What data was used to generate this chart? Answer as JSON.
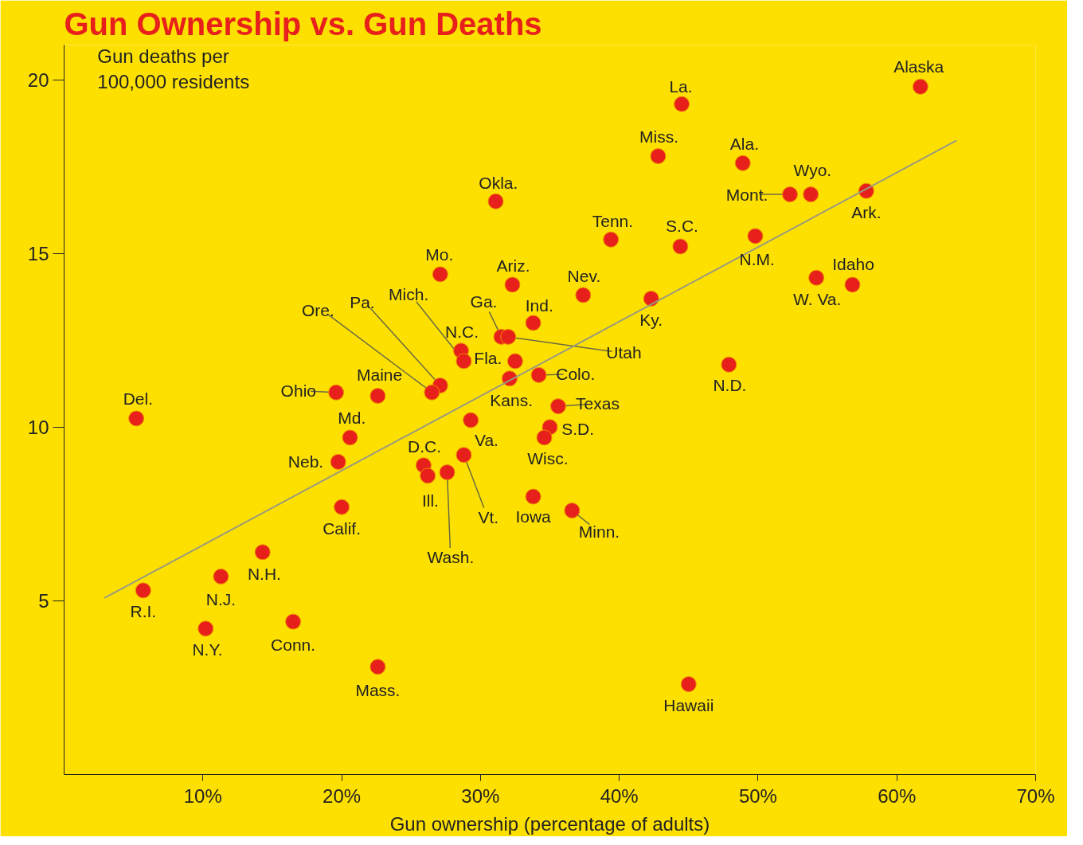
{
  "chart_data": {
    "type": "scatter",
    "title": "Gun Ownership vs. Gun Deaths",
    "xlabel": "Gun ownership (percentage of adults)",
    "ylabel": "Gun deaths per 100,000 residents",
    "xlim": [
      0,
      70
    ],
    "ylim": [
      0,
      21
    ],
    "xticks": [
      {
        "value": 10,
        "label": "10%"
      },
      {
        "value": 20,
        "label": "20%"
      },
      {
        "value": 30,
        "label": "30%"
      },
      {
        "value": 40,
        "label": "40%"
      },
      {
        "value": 50,
        "label": "50%"
      },
      {
        "value": 60,
        "label": "60%"
      },
      {
        "value": 70,
        "label": "70%"
      }
    ],
    "yticks": [
      5,
      10,
      15,
      20
    ],
    "grid": false,
    "marker": "circle",
    "series": [
      {
        "color": "#e8201c",
        "x": [
          61.7,
          44.5,
          42.8,
          48.9,
          53.8,
          52.3,
          57.8,
          31.1,
          39.4,
          44.4,
          49.8,
          27.1,
          32.3,
          37.4,
          42.3,
          56.8,
          54.2,
          33.8,
          31.5,
          32.0,
          28.6,
          28.8,
          32.5,
          32.1,
          34.2,
          47.9,
          27.1,
          26.5,
          22.6,
          19.6,
          35.6,
          5.2,
          29.3,
          35.0,
          20.6,
          34.6,
          28.8,
          19.75,
          25.9,
          26.2,
          27.6,
          33.8,
          36.6,
          20.0,
          14.3,
          11.3,
          5.7,
          10.2,
          16.5,
          22.6,
          45.0
        ],
        "values": [
          19.8,
          19.3,
          17.8,
          17.6,
          16.7,
          16.7,
          16.8,
          16.5,
          15.4,
          15.2,
          15.5,
          14.4,
          14.1,
          13.8,
          13.7,
          14.1,
          14.3,
          13.0,
          12.6,
          12.6,
          12.2,
          11.9,
          11.9,
          11.4,
          11.5,
          11.8,
          11.2,
          11.0,
          10.9,
          11.0,
          10.6,
          10.25,
          10.2,
          10.0,
          9.7,
          9.7,
          9.2,
          9.0,
          8.9,
          8.6,
          8.7,
          8.0,
          7.6,
          7.7,
          6.4,
          5.7,
          5.3,
          4.2,
          4.4,
          3.1,
          2.6
        ]
      },
      {
        "type": "line",
        "marker": "none",
        "color": "#9a9a80",
        "x": [
          2.9,
          64.3
        ],
        "values": [
          5.08,
          18.25
        ]
      }
    ],
    "annotations": [
      {
        "text": "Alaska",
        "x": 61.7,
        "y": 19.8
      },
      {
        "text": "La.",
        "x": 44.5,
        "y": 19.3
      },
      {
        "text": "Miss.",
        "x": 42.8,
        "y": 17.8
      },
      {
        "text": "Ala.",
        "x": 48.9,
        "y": 17.6
      },
      {
        "text": "Wyo.",
        "x": 53.8,
        "y": 16.7
      },
      {
        "text": "Mont.",
        "x": 52.3,
        "y": 16.7
      },
      {
        "text": "Ark.",
        "x": 57.8,
        "y": 16.8
      },
      {
        "text": "Okla.",
        "x": 31.1,
        "y": 16.5
      },
      {
        "text": "Tenn.",
        "x": 39.4,
        "y": 15.4
      },
      {
        "text": "S.C.",
        "x": 44.4,
        "y": 15.2
      },
      {
        "text": "N.M.",
        "x": 49.8,
        "y": 15.5
      },
      {
        "text": "Mo.",
        "x": 27.1,
        "y": 14.4
      },
      {
        "text": "Ariz.",
        "x": 32.3,
        "y": 14.1
      },
      {
        "text": "Nev.",
        "x": 37.4,
        "y": 13.8
      },
      {
        "text": "Ky.",
        "x": 42.3,
        "y": 13.7
      },
      {
        "text": "Idaho",
        "x": 56.8,
        "y": 14.1
      },
      {
        "text": "W. Va.",
        "x": 54.2,
        "y": 14.3
      },
      {
        "text": "Ind.",
        "x": 33.8,
        "y": 13.0
      },
      {
        "text": "Ga.",
        "x": 31.5,
        "y": 12.6
      },
      {
        "text": "Utah",
        "x": 32.0,
        "y": 12.6
      },
      {
        "text": "N.C.",
        "x": 28.6,
        "y": 12.2
      },
      {
        "text": "Mich.",
        "x": 28.8,
        "y": 11.9
      },
      {
        "text": "Fla.",
        "x": 32.5,
        "y": 11.9
      },
      {
        "text": "Kans.",
        "x": 32.1,
        "y": 11.4
      },
      {
        "text": "Colo.",
        "x": 34.2,
        "y": 11.5
      },
      {
        "text": "N.D.",
        "x": 47.9,
        "y": 11.8
      },
      {
        "text": "Pa.",
        "x": 27.1,
        "y": 11.2
      },
      {
        "text": "Ore.",
        "x": 26.5,
        "y": 11.0
      },
      {
        "text": "Maine",
        "x": 22.6,
        "y": 10.9
      },
      {
        "text": "Ohio",
        "x": 19.6,
        "y": 11.0
      },
      {
        "text": "Texas",
        "x": 35.6,
        "y": 10.6
      },
      {
        "text": "Del.",
        "x": 5.2,
        "y": 10.25
      },
      {
        "text": "Va.",
        "x": 29.3,
        "y": 10.2
      },
      {
        "text": "S.D.",
        "x": 35.0,
        "y": 10.0
      },
      {
        "text": "Md.",
        "x": 20.6,
        "y": 9.7
      },
      {
        "text": "Wisc.",
        "x": 34.6,
        "y": 9.7
      },
      {
        "text": "Vt.",
        "x": 28.8,
        "y": 9.2
      },
      {
        "text": "Neb.",
        "x": 19.75,
        "y": 9.0
      },
      {
        "text": "D.C.",
        "x": 25.9,
        "y": 8.9
      },
      {
        "text": "Ill.",
        "x": 26.2,
        "y": 8.6
      },
      {
        "text": "Wash.",
        "x": 27.6,
        "y": 8.7
      },
      {
        "text": "Iowa",
        "x": 33.8,
        "y": 8.0
      },
      {
        "text": "Minn.",
        "x": 36.6,
        "y": 7.6
      },
      {
        "text": "Calif.",
        "x": 20.0,
        "y": 7.7
      },
      {
        "text": "N.H.",
        "x": 14.3,
        "y": 6.4
      },
      {
        "text": "N.J.",
        "x": 11.3,
        "y": 5.7
      },
      {
        "text": "R.I.",
        "x": 5.7,
        "y": 5.3
      },
      {
        "text": "N.Y.",
        "x": 10.2,
        "y": 4.2
      },
      {
        "text": "Conn.",
        "x": 16.5,
        "y": 4.4
      },
      {
        "text": "Mass.",
        "x": 22.6,
        "y": 3.1
      },
      {
        "text": "Hawaii",
        "x": 45.0,
        "y": 2.6
      }
    ]
  }
}
